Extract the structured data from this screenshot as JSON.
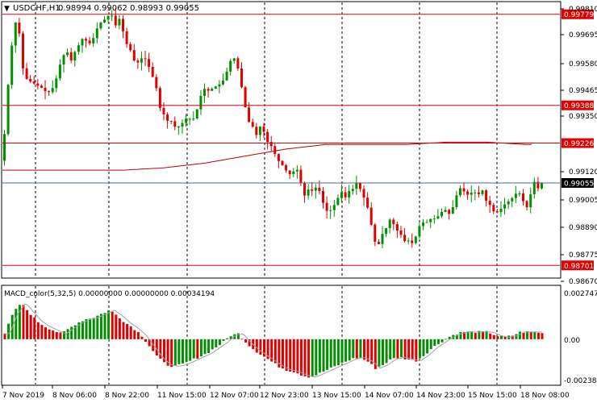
{
  "title_bar": {
    "toggle_glyph": "▼",
    "symbol": "USDCHF,H1",
    "ohlc": "0.98994 0.99062 0.98993 0.99055"
  },
  "main_chart": {
    "price_ticks": [
      "0.99810",
      "0.99695",
      "0.99580",
      "0.99465",
      "0.99350",
      "0.99120",
      "0.99005",
      "0.98890",
      "0.98775",
      "0.98670"
    ],
    "level_lines": [
      {
        "label": "0.99779",
        "price": 0.99779
      },
      {
        "label": "0.99388",
        "price": 0.99388
      },
      {
        "label": "0.99226",
        "price": 0.99226
      },
      {
        "label": "0.98701",
        "price": 0.98701
      }
    ],
    "current_price": {
      "label": "0.99055",
      "price": 0.99055
    },
    "level_color": "#e00000",
    "bull_color": "#009000",
    "bear_color": "#e00000"
  },
  "macd": {
    "label": "MACD_color(5,32,5) 0.00000000 0.00000000 0.00034194",
    "ticks": [
      "0.0027470",
      "0.00",
      "-0.002384"
    ]
  },
  "time_axis": [
    "7 Nov 2019",
    "8 Nov 06:00",
    "8 Nov 22:00",
    "11 Nov 15:00",
    "12 Nov 07:00",
    "12 Nov 23:00",
    "13 Nov 15:00",
    "14 Nov 07:00",
    "14 Nov 23:00",
    "15 Nov 15:00",
    "18 Nov 08:00"
  ],
  "chart_data": {
    "type": "candlestick",
    "title": "USDCHF,H1",
    "ylim": [
      0.9865,
      0.9983
    ],
    "close_path": [
      [
        0,
        0.9915
      ],
      [
        5,
        0.994
      ],
      [
        10,
        0.996
      ],
      [
        15,
        0.9975
      ],
      [
        20,
        0.9972
      ],
      [
        25,
        0.9955
      ],
      [
        30,
        0.995
      ],
      [
        35,
        0.9949
      ],
      [
        40,
        0.9948
      ],
      [
        45,
        0.9947
      ],
      [
        50,
        0.9946
      ],
      [
        55,
        0.9944
      ],
      [
        60,
        0.9945
      ],
      [
        65,
        0.9948
      ],
      [
        70,
        0.9955
      ],
      [
        75,
        0.996
      ],
      [
        80,
        0.9962
      ],
      [
        85,
        0.9958
      ],
      [
        90,
        0.9962
      ],
      [
        95,
        0.9965
      ],
      [
        100,
        0.9968
      ],
      [
        105,
        0.9966
      ],
      [
        110,
        0.9965
      ],
      [
        115,
        0.997
      ],
      [
        120,
        0.9974
      ],
      [
        125,
        0.9975
      ],
      [
        130,
        0.9977
      ],
      [
        135,
        0.9978
      ],
      [
        140,
        0.9973
      ],
      [
        145,
        0.9976
      ],
      [
        150,
        0.997
      ],
      [
        155,
        0.9964
      ],
      [
        160,
        0.9962
      ],
      [
        165,
        0.9956
      ],
      [
        170,
        0.9958
      ],
      [
        175,
        0.996
      ],
      [
        180,
        0.9957
      ],
      [
        185,
        0.9952
      ],
      [
        190,
        0.9948
      ],
      [
        195,
        0.9938
      ],
      [
        200,
        0.9935
      ],
      [
        205,
        0.9932
      ],
      [
        210,
        0.9932
      ],
      [
        215,
        0.9929
      ],
      [
        220,
        0.993
      ],
      [
        225,
        0.9932
      ],
      [
        230,
        0.9934
      ],
      [
        235,
        0.9932
      ],
      [
        240,
        0.9935
      ],
      [
        245,
        0.9942
      ],
      [
        250,
        0.9946
      ],
      [
        255,
        0.9945
      ],
      [
        260,
        0.9946
      ],
      [
        265,
        0.9947
      ],
      [
        270,
        0.9948
      ],
      [
        275,
        0.995
      ],
      [
        280,
        0.9955
      ],
      [
        285,
        0.996
      ],
      [
        290,
        0.9958
      ],
      [
        295,
        0.995
      ],
      [
        300,
        0.994
      ],
      [
        305,
        0.9932
      ],
      [
        310,
        0.993
      ],
      [
        315,
        0.9926
      ],
      [
        320,
        0.993
      ],
      [
        325,
        0.9927
      ],
      [
        330,
        0.9922
      ],
      [
        335,
        0.9921
      ],
      [
        340,
        0.9916
      ],
      [
        345,
        0.9914
      ],
      [
        350,
        0.9912
      ],
      [
        355,
        0.9909
      ],
      [
        360,
        0.991
      ],
      [
        365,
        0.9912
      ],
      [
        370,
        0.9906
      ],
      [
        375,
        0.99
      ],
      [
        380,
        0.9903
      ],
      [
        385,
        0.9902
      ],
      [
        390,
        0.9904
      ],
      [
        395,
        0.9901
      ],
      [
        400,
        0.9894
      ],
      [
        405,
        0.9893
      ],
      [
        410,
        0.9895
      ],
      [
        415,
        0.9898
      ],
      [
        420,
        0.9902
      ],
      [
        425,
        0.9899
      ],
      [
        430,
        0.9902
      ],
      [
        435,
        0.9903
      ],
      [
        440,
        0.9906
      ],
      [
        445,
        0.9902
      ],
      [
        450,
        0.9898
      ],
      [
        455,
        0.9893
      ],
      [
        460,
        0.9883
      ],
      [
        465,
        0.9877
      ],
      [
        470,
        0.9883
      ],
      [
        475,
        0.9885
      ],
      [
        480,
        0.989
      ],
      [
        485,
        0.9888
      ],
      [
        490,
        0.9885
      ],
      [
        495,
        0.9883
      ],
      [
        500,
        0.988
      ],
      [
        505,
        0.9881
      ],
      [
        510,
        0.9879
      ],
      [
        515,
        0.9885
      ],
      [
        520,
        0.9889
      ],
      [
        525,
        0.9888
      ],
      [
        530,
        0.989
      ],
      [
        535,
        0.989
      ],
      [
        540,
        0.9891
      ],
      [
        545,
        0.9893
      ],
      [
        550,
        0.9894
      ],
      [
        555,
        0.9892
      ],
      [
        560,
        0.9896
      ],
      [
        565,
        0.9902
      ],
      [
        570,
        0.9904
      ],
      [
        575,
        0.99
      ],
      [
        580,
        0.9901
      ],
      [
        585,
        0.9902
      ],
      [
        590,
        0.99
      ],
      [
        595,
        0.9903
      ],
      [
        600,
        0.9898
      ],
      [
        605,
        0.9896
      ],
      [
        610,
        0.9893
      ],
      [
        615,
        0.9893
      ],
      [
        620,
        0.9895
      ],
      [
        625,
        0.9897
      ],
      [
        630,
        0.9898
      ],
      [
        635,
        0.99
      ],
      [
        640,
        0.9902
      ],
      [
        645,
        0.9899
      ],
      [
        650,
        0.9894
      ],
      [
        655,
        0.99
      ],
      [
        660,
        0.9906
      ],
      [
        665,
        0.9903
      ],
      [
        669,
        0.99055
      ]
    ],
    "ma_path": [
      [
        0,
        0.9911
      ],
      [
        100,
        0.9911
      ],
      [
        150,
        0.9911
      ],
      [
        200,
        0.9912
      ],
      [
        250,
        0.9914
      ],
      [
        300,
        0.9917
      ],
      [
        350,
        0.992
      ],
      [
        400,
        0.9922
      ],
      [
        450,
        0.9922
      ],
      [
        500,
        0.9922
      ],
      [
        550,
        0.9923
      ],
      [
        600,
        0.9923
      ],
      [
        650,
        0.9922
      ]
    ],
    "macd_path": [
      [
        0,
        0.0003
      ],
      [
        10,
        0.0014
      ],
      [
        20,
        0.002
      ],
      [
        30,
        0.0015
      ],
      [
        40,
        0.001
      ],
      [
        50,
        0.0007
      ],
      [
        60,
        0.0005
      ],
      [
        70,
        0.0003
      ],
      [
        80,
        0.0006
      ],
      [
        90,
        0.0009
      ],
      [
        100,
        0.0011
      ],
      [
        110,
        0.0012
      ],
      [
        120,
        0.0014
      ],
      [
        130,
        0.0016
      ],
      [
        140,
        0.0013
      ],
      [
        150,
        0.0009
      ],
      [
        160,
        0.0006
      ],
      [
        170,
        0.0002
      ],
      [
        180,
        -0.0004
      ],
      [
        190,
        -0.001
      ],
      [
        200,
        -0.0014
      ],
      [
        210,
        -0.0015
      ],
      [
        220,
        -0.0014
      ],
      [
        230,
        -0.0012
      ],
      [
        240,
        -0.001
      ],
      [
        250,
        -0.0008
      ],
      [
        260,
        -0.0005
      ],
      [
        270,
        -0.0002
      ],
      [
        280,
        0.0002
      ],
      [
        290,
        0.0003
      ],
      [
        300,
        -0.0002
      ],
      [
        310,
        -0.0006
      ],
      [
        320,
        -0.0009
      ],
      [
        330,
        -0.0012
      ],
      [
        340,
        -0.0015
      ],
      [
        350,
        -0.0017
      ],
      [
        360,
        -0.0018
      ],
      [
        370,
        -0.002
      ],
      [
        380,
        -0.0021
      ],
      [
        390,
        -0.0019
      ],
      [
        400,
        -0.0017
      ],
      [
        410,
        -0.0015
      ],
      [
        420,
        -0.0013
      ],
      [
        430,
        -0.0011
      ],
      [
        440,
        -0.001
      ],
      [
        450,
        -0.0012
      ],
      [
        460,
        -0.0016
      ],
      [
        470,
        -0.0014
      ],
      [
        480,
        -0.0011
      ],
      [
        490,
        -0.001
      ],
      [
        500,
        -0.0011
      ],
      [
        510,
        -0.0012
      ],
      [
        520,
        -0.0009
      ],
      [
        530,
        -0.0005
      ],
      [
        540,
        -0.0002
      ],
      [
        550,
        0.0001
      ],
      [
        560,
        0.0003
      ],
      [
        570,
        0.0004
      ],
      [
        580,
        0.0004
      ],
      [
        590,
        0.0004
      ],
      [
        600,
        0.0004
      ],
      [
        610,
        0.0002
      ],
      [
        620,
        0.0001
      ],
      [
        630,
        0.0002
      ],
      [
        640,
        0.0004
      ],
      [
        650,
        0.0004
      ],
      [
        660,
        0.0004
      ],
      [
        669,
        0.0003
      ]
    ],
    "macd_ylim": [
      -0.0025,
      0.0028
    ]
  }
}
